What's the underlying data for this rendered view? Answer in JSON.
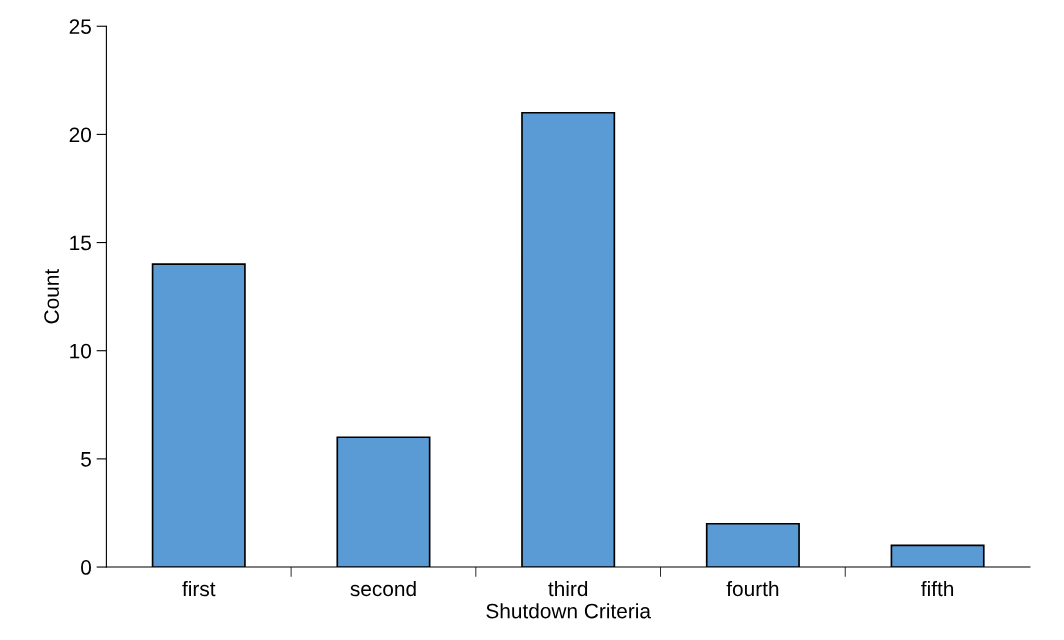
{
  "chart_data": {
    "type": "bar",
    "xlabel": "Shutdown Criteria",
    "ylabel": "Count",
    "categories": [
      "first",
      "second",
      "third",
      "fourth",
      "fifth"
    ],
    "values": [
      14,
      6,
      21,
      2,
      1
    ],
    "color": "#5b9bd5",
    "ylim": [
      0,
      25
    ],
    "yticks": [
      0,
      5,
      10,
      15,
      20,
      25
    ],
    "grid": false,
    "legend": false
  }
}
